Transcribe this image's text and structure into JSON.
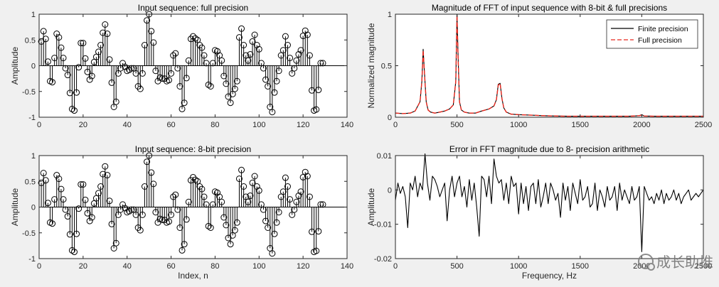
{
  "chart_data": [
    {
      "type": "stem",
      "title": "Input sequence: full precision",
      "xlabel": "",
      "ylabel": "Amplitude",
      "xlim": [
        0,
        140
      ],
      "ylim": [
        -1,
        1
      ],
      "xticks": [
        "0",
        "20",
        "40",
        "60",
        "80",
        "100",
        "120",
        "140"
      ],
      "yticks": [
        "-1",
        "-0.5",
        "0",
        "0.5",
        "1"
      ],
      "grid": false,
      "x_start": 1,
      "values": [
        0.47,
        0.67,
        0.52,
        0.08,
        -0.3,
        -0.32,
        0.15,
        0.62,
        0.55,
        0.35,
        0.15,
        -0.05,
        -0.18,
        -0.53,
        -0.84,
        -0.87,
        -0.52,
        -0.03,
        0.44,
        0.44,
        0.14,
        -0.12,
        -0.27,
        -0.2,
        0.07,
        0.17,
        0.27,
        0.4,
        0.64,
        0.8,
        0.62,
        0.12,
        -0.33,
        -0.8,
        -0.7,
        -0.15,
        -0.05,
        0.05,
        -0.02,
        -0.1,
        -0.08,
        -0.05,
        -0.05,
        -0.15,
        -0.4,
        -0.45,
        -0.15,
        0.4,
        0.88,
        1.0,
        0.67,
        0.45,
        -0.1,
        -0.3,
        -0.23,
        -0.25,
        -0.25,
        -0.3,
        -0.28,
        -0.15,
        0.2,
        0.24,
        -0.05,
        -0.4,
        -0.84,
        -0.72,
        -0.24,
        0.1,
        0.52,
        0.57,
        0.53,
        0.5,
        0.4,
        0.35,
        0.2,
        0.05,
        -0.37,
        -0.4,
        0.05,
        0.3,
        0.28,
        0.2,
        0.1,
        -0.2,
        -0.35,
        -0.6,
        -0.72,
        -0.55,
        -0.45,
        -0.3,
        0.55,
        0.72,
        0.4,
        0.2,
        0.1,
        0.22,
        0.47,
        0.6,
        0.4,
        0.32,
        0.05,
        -0.05,
        -0.27,
        -0.4,
        -0.8,
        -0.9,
        -0.52,
        -0.3,
        -0.1,
        0.2,
        0.3,
        0.57,
        0.4,
        0.15,
        -0.15,
        -0.05,
        0.1,
        0.22,
        0.3,
        0.58,
        0.68,
        0.6,
        0.2,
        -0.48,
        -0.87,
        -0.85,
        -0.47,
        0.05,
        0.05
      ]
    },
    {
      "type": "line",
      "title": "Magnitude of FFT of input sequence with 8-bit  & full precisions",
      "xlabel": "",
      "ylabel": "Normalized magnitude",
      "xlim": [
        0,
        2500
      ],
      "ylim": [
        0,
        1
      ],
      "xticks": [
        "0",
        "500",
        "1000",
        "1500",
        "2000",
        "2500"
      ],
      "yticks": [
        "0",
        "0.5",
        "1"
      ],
      "grid": false,
      "legend_position": "top-right",
      "series": [
        {
          "name": "Finite precision",
          "color": "#000000",
          "style": "solid",
          "x": [
            0,
            60,
            120,
            160,
            200,
            215,
            225,
            235,
            250,
            265,
            285,
            320,
            360,
            400,
            440,
            470,
            490,
            500,
            510,
            520,
            535,
            560,
            600,
            650,
            700,
            760,
            800,
            820,
            835,
            850,
            865,
            880,
            900,
            940,
            1000,
            1100,
            1200,
            1300,
            1400,
            1500,
            1600,
            1700,
            1800,
            1900,
            1980,
            2000,
            2020,
            2100,
            2200,
            2300,
            2400,
            2500
          ],
          "y": [
            0.04,
            0.035,
            0.04,
            0.06,
            0.15,
            0.35,
            0.66,
            0.45,
            0.15,
            0.07,
            0.05,
            0.04,
            0.05,
            0.06,
            0.08,
            0.12,
            0.35,
            1.0,
            0.55,
            0.15,
            0.07,
            0.05,
            0.04,
            0.04,
            0.06,
            0.08,
            0.11,
            0.17,
            0.32,
            0.33,
            0.18,
            0.09,
            0.05,
            0.03,
            0.025,
            0.02,
            0.015,
            0.012,
            0.01,
            0.01,
            0.01,
            0.01,
            0.01,
            0.01,
            0.015,
            0.025,
            0.012,
            0.01,
            0.01,
            0.01,
            0.01,
            0.01
          ]
        },
        {
          "name": "Full precision",
          "color": "#e8281e",
          "style": "dashed",
          "x": [
            0,
            60,
            120,
            160,
            200,
            215,
            225,
            235,
            250,
            265,
            285,
            320,
            360,
            400,
            440,
            470,
            490,
            500,
            510,
            520,
            535,
            560,
            600,
            650,
            700,
            760,
            800,
            820,
            835,
            850,
            865,
            880,
            900,
            940,
            1000,
            1100,
            1200,
            1300,
            1400,
            1500,
            1600,
            1700,
            1800,
            1900,
            1980,
            2000,
            2020,
            2100,
            2200,
            2300,
            2400,
            2500
          ],
          "y": [
            0.04,
            0.035,
            0.04,
            0.06,
            0.15,
            0.35,
            0.65,
            0.45,
            0.15,
            0.07,
            0.05,
            0.04,
            0.05,
            0.06,
            0.08,
            0.12,
            0.35,
            0.99,
            0.55,
            0.15,
            0.07,
            0.05,
            0.04,
            0.04,
            0.06,
            0.08,
            0.11,
            0.17,
            0.31,
            0.33,
            0.18,
            0.09,
            0.05,
            0.03,
            0.025,
            0.02,
            0.015,
            0.012,
            0.01,
            0.01,
            0.01,
            0.01,
            0.01,
            0.01,
            0.015,
            0.02,
            0.012,
            0.01,
            0.01,
            0.01,
            0.01,
            0.01
          ]
        }
      ]
    },
    {
      "type": "stem",
      "title": "Input sequence: 8-bit precision",
      "xlabel": "Index, n",
      "ylabel": "Amplitude",
      "xlim": [
        0,
        140
      ],
      "ylim": [
        -1,
        1
      ],
      "xticks": [
        "0",
        "20",
        "40",
        "60",
        "80",
        "100",
        "120",
        "140"
      ],
      "yticks": [
        "-1",
        "-0.5",
        "0",
        "0.5",
        "1"
      ],
      "grid": false,
      "x_start": 1,
      "values": [
        0.47,
        0.66,
        0.52,
        0.08,
        -0.3,
        -0.32,
        0.15,
        0.62,
        0.55,
        0.35,
        0.15,
        -0.05,
        -0.18,
        -0.53,
        -0.84,
        -0.87,
        -0.52,
        -0.03,
        0.44,
        0.44,
        0.14,
        -0.12,
        -0.27,
        -0.2,
        0.07,
        0.17,
        0.27,
        0.4,
        0.64,
        0.79,
        0.62,
        0.12,
        -0.33,
        -0.8,
        -0.7,
        -0.15,
        -0.05,
        0.05,
        -0.02,
        -0.1,
        -0.08,
        -0.05,
        -0.05,
        -0.15,
        -0.4,
        -0.45,
        -0.15,
        0.4,
        0.88,
        1.0,
        0.67,
        0.45,
        -0.1,
        -0.3,
        -0.23,
        -0.25,
        -0.25,
        -0.3,
        -0.28,
        -0.15,
        0.2,
        0.24,
        -0.05,
        -0.4,
        -0.84,
        -0.72,
        -0.24,
        0.1,
        0.52,
        0.58,
        0.53,
        0.5,
        0.4,
        0.35,
        0.2,
        0.05,
        -0.37,
        -0.4,
        0.05,
        0.3,
        0.28,
        0.2,
        0.1,
        -0.2,
        -0.35,
        -0.6,
        -0.72,
        -0.55,
        -0.45,
        -0.3,
        0.55,
        0.72,
        0.4,
        0.2,
        0.1,
        0.22,
        0.47,
        0.6,
        0.4,
        0.32,
        0.05,
        -0.05,
        -0.27,
        -0.4,
        -0.8,
        -0.9,
        -0.52,
        -0.3,
        -0.1,
        0.2,
        0.3,
        0.57,
        0.4,
        0.15,
        -0.15,
        -0.05,
        0.1,
        0.22,
        0.3,
        0.58,
        0.68,
        0.6,
        0.2,
        -0.48,
        -0.87,
        -0.85,
        -0.47,
        0.05,
        0.05
      ]
    },
    {
      "type": "line",
      "title": "Error in FFT magnitude due to 8- precision arithmetic",
      "xlabel": "Frequency, Hz",
      "ylabel": "Amplitude",
      "xlim": [
        0,
        2500
      ],
      "ylim": [
        -0.02,
        0.01
      ],
      "xticks": [
        "0",
        "500",
        "1000",
        "1500",
        "2000",
        "2500"
      ],
      "yticks": [
        "-0.02",
        "-0.01",
        "0",
        "0.01"
      ],
      "grid": false,
      "series": [
        {
          "name": "",
          "color": "#000000",
          "style": "solid",
          "x": [
            0,
            20,
            40,
            60,
            80,
            100,
            120,
            140,
            160,
            180,
            200,
            220,
            240,
            260,
            280,
            300,
            320,
            340,
            360,
            380,
            400,
            420,
            440,
            460,
            480,
            500,
            520,
            540,
            560,
            580,
            600,
            620,
            640,
            660,
            680,
            700,
            720,
            740,
            760,
            780,
            800,
            820,
            840,
            860,
            880,
            900,
            920,
            940,
            960,
            980,
            1000,
            1020,
            1040,
            1060,
            1080,
            1100,
            1120,
            1140,
            1160,
            1180,
            1200,
            1220,
            1240,
            1260,
            1280,
            1300,
            1320,
            1340,
            1360,
            1380,
            1400,
            1420,
            1440,
            1460,
            1480,
            1500,
            1520,
            1540,
            1560,
            1580,
            1600,
            1620,
            1640,
            1660,
            1680,
            1700,
            1720,
            1740,
            1760,
            1780,
            1800,
            1820,
            1840,
            1860,
            1880,
            1900,
            1920,
            1940,
            1960,
            1980,
            2000,
            2020,
            2040,
            2060,
            2080,
            2100,
            2120,
            2140,
            2160,
            2180,
            2200,
            2220,
            2240,
            2260,
            2280,
            2300,
            2320,
            2340,
            2360,
            2380,
            2400,
            2420,
            2440,
            2460,
            2480,
            2500
          ],
          "y": [
            -0.003,
            0.002,
            -0.001,
            0.001,
            -0.002,
            -0.011,
            0.002,
            0.0,
            0.004,
            -0.002,
            0.002,
            0.0,
            0.0105,
            0.002,
            -0.003,
            0.004,
            0.003,
            0.001,
            -0.002,
            0.0,
            0.002,
            -0.009,
            0.0,
            0.004,
            -0.002,
            0.002,
            0.004,
            -0.002,
            0.001,
            -0.005,
            0.003,
            -0.003,
            0.002,
            -0.005,
            -0.0135,
            0.004,
            0.003,
            -0.002,
            0.004,
            -0.004,
            0.009,
            0.004,
            0.002,
            0.003,
            -0.003,
            0.002,
            -0.004,
            0.004,
            0.001,
            0.002,
            -0.007,
            0.002,
            -0.004,
            0.001,
            -0.006,
            0.001,
            0.002,
            -0.004,
            0.003,
            -0.005,
            -0.002,
            0.002,
            -0.004,
            0.002,
            0.0,
            -0.003,
            -0.001,
            -0.008,
            0.002,
            -0.003,
            0.001,
            -0.006,
            0.002,
            -0.001,
            -0.004,
            0.003,
            -0.003,
            -0.002,
            0.001,
            -0.005,
            -0.004,
            0.002,
            -0.006,
            0.0,
            -0.002,
            -0.005,
            0.001,
            -0.003,
            -0.002,
            0.001,
            -0.006,
            0.002,
            -0.003,
            0.0,
            -0.002,
            -0.004,
            0.001,
            -0.003,
            -0.002,
            0.001,
            -0.018,
            0.001,
            -0.001,
            -0.003,
            -0.002,
            -0.004,
            -0.001,
            -0.003,
            0.0,
            -0.004,
            -0.001,
            -0.003,
            -0.002,
            0.0,
            -0.003,
            -0.001,
            -0.004,
            -0.002,
            -0.001,
            0.0,
            -0.003,
            -0.002,
            -0.001,
            -0.002,
            -0.001,
            0.0
          ]
        }
      ]
    }
  ],
  "watermark": {
    "text": "成长助推"
  }
}
